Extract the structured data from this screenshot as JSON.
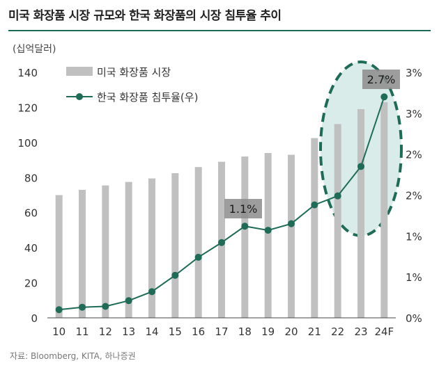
{
  "title": "미국 화장품 시장 규모와 한국 화장품의 시장 침투율 추이",
  "unit_label": "(십억달러)",
  "source": "자료: Bloomberg, KITA, 하나증권",
  "colors": {
    "bar": "#c0c0c0",
    "line": "#1e6b57",
    "highlight_stroke": "#1e6b57",
    "highlight_fill": "#d9ece9",
    "callout_bg": "#8c8c8c"
  },
  "chart_data": {
    "type": "bar+line",
    "categories": [
      "10",
      "11",
      "12",
      "13",
      "14",
      "15",
      "16",
      "17",
      "18",
      "19",
      "20",
      "21",
      "22",
      "23",
      "24F"
    ],
    "series": [
      {
        "name": "미국 화장품 시장",
        "type": "bar",
        "axis": "left",
        "values": [
          70,
          73,
          75.5,
          77.5,
          79.5,
          82.5,
          86,
          89,
          92,
          94,
          93,
          102.5,
          110.5,
          119,
          123
        ]
      },
      {
        "name": "한국 화장품 침투율(우)",
        "type": "line",
        "axis": "right",
        "values": [
          0.1,
          0.13,
          0.14,
          0.21,
          0.32,
          0.52,
          0.74,
          0.92,
          1.12,
          1.07,
          1.15,
          1.38,
          1.49,
          1.85,
          2.7
        ]
      }
    ],
    "y_left": {
      "min": 0,
      "max": 140,
      "ticks": [
        "0",
        "20",
        "40",
        "60",
        "80",
        "100",
        "120",
        "140"
      ]
    },
    "y_right": {
      "min": 0,
      "max": 3,
      "ticks": [
        "0%",
        "1%",
        "1%",
        "2%",
        "2%",
        "3%",
        "3%"
      ]
    },
    "annotations": [
      {
        "text": "1.1%",
        "category": "18"
      },
      {
        "text": "2.7%",
        "category": "24F"
      }
    ],
    "legend": {
      "position": "top-left"
    }
  }
}
